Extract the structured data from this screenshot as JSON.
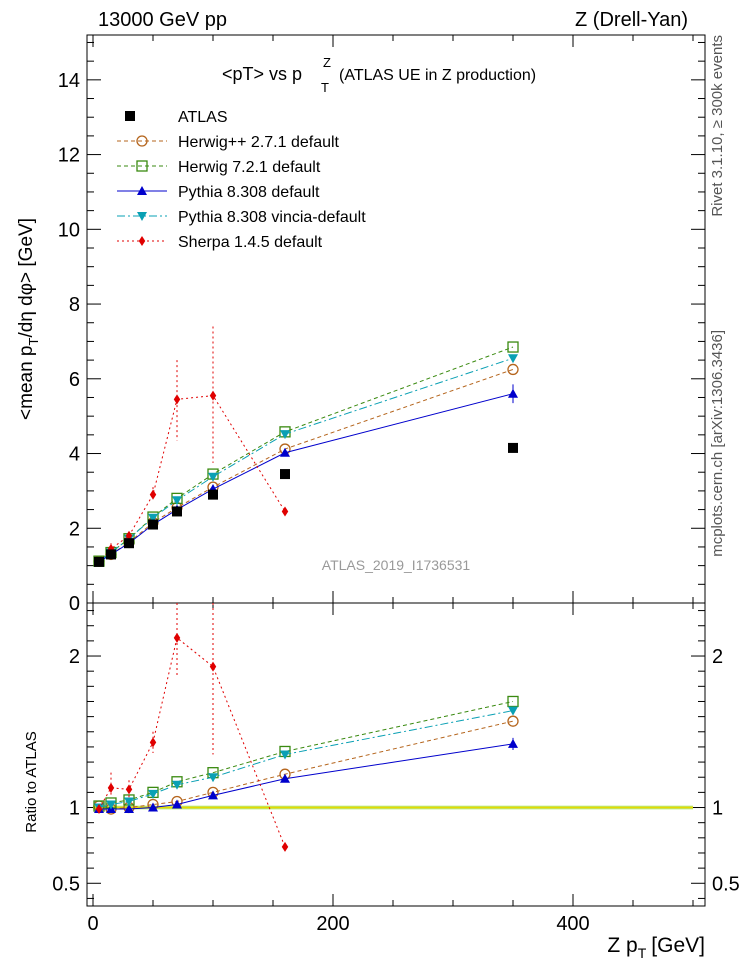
{
  "header": {
    "left": "13000 GeV pp",
    "right": "Z (Drell-Yan)"
  },
  "side_labels": {
    "rivet": "Rivet 3.1.10, ≥ 300k events",
    "mcplots": "mcplots.cern.ch [arXiv:1306.3436]"
  },
  "chart_data": {
    "type": "line",
    "title_main": "<pT> vs p",
    "title_sup": "Z",
    "title_sub": "T",
    "title_rest": "(ATLAS UE in Z production)",
    "watermark": "ATLAS_2019_I1736531",
    "xlabel_main": "Z p",
    "xlabel_sub": "T",
    "xlabel_unit": "[GeV]",
    "ylabel_top_a": "<mean p",
    "ylabel_top_sub": "T",
    "ylabel_top_b": "/dη dφ> [GeV]",
    "ylabel_bottom": "Ratio to ATLAS",
    "xlim": [
      -5,
      510
    ],
    "ylim_top": [
      0,
      15.2
    ],
    "ylim_bottom": [
      0.35,
      2.35
    ],
    "x_ticks": [
      0,
      200,
      400
    ],
    "y_ticks_top": [
      0,
      2,
      4,
      6,
      8,
      10,
      12,
      14
    ],
    "y_ticks_bottom": [
      0.5,
      1,
      2
    ],
    "x": [
      5,
      15,
      30,
      50,
      70,
      100,
      160,
      350
    ],
    "reference_name": "ATLAS",
    "reference_x": [
      5,
      15,
      30,
      50,
      70,
      100,
      160,
      350
    ],
    "reference_y": [
      1.1,
      1.3,
      1.6,
      2.1,
      2.45,
      2.9,
      3.45,
      4.15
    ],
    "series": [
      {
        "name": "Herwig++ 2.7.1 default",
        "color": "#b5651d",
        "dash": "4,3",
        "marker": "circle-open",
        "x": [
          5,
          15,
          30,
          50,
          70,
          100,
          160,
          350
        ],
        "values": [
          1.12,
          1.3,
          1.62,
          2.15,
          2.55,
          3.1,
          4.12,
          6.25
        ],
        "ratio": [
          1.01,
          0.99,
          1.0,
          1.02,
          1.04,
          1.1,
          1.22,
          1.57
        ]
      },
      {
        "name": "Herwig 7.2.1 default",
        "color": "#3a8a10",
        "dash": "4,3",
        "marker": "square-open",
        "x": [
          5,
          15,
          30,
          50,
          70,
          100,
          160,
          350
        ],
        "values": [
          1.12,
          1.35,
          1.72,
          2.3,
          2.8,
          3.45,
          4.58,
          6.85
        ],
        "ratio": [
          1.01,
          1.03,
          1.05,
          1.1,
          1.17,
          1.23,
          1.37,
          1.7
        ]
      },
      {
        "name": "Pythia 8.308 default",
        "color": "#0000cc",
        "dash": "",
        "marker": "triangle-up",
        "x": [
          5,
          15,
          30,
          50,
          70,
          100,
          160,
          350
        ],
        "values": [
          1.1,
          1.3,
          1.6,
          2.1,
          2.5,
          3.05,
          4.02,
          5.6
        ],
        "ratio": [
          0.99,
          0.99,
          0.99,
          1.0,
          1.02,
          1.08,
          1.19,
          1.42
        ]
      },
      {
        "name": "Pythia 8.308 vincia-default",
        "color": "#0aa0b4",
        "dash": "8,3,2,3",
        "marker": "triangle-down",
        "x": [
          5,
          15,
          30,
          50,
          70,
          100,
          160,
          350
        ],
        "values": [
          1.12,
          1.35,
          1.72,
          2.28,
          2.75,
          3.38,
          4.52,
          6.55
        ],
        "ratio": [
          1.0,
          1.02,
          1.04,
          1.09,
          1.15,
          1.2,
          1.35,
          1.64
        ]
      },
      {
        "name": "Sherpa 1.4.5 default",
        "color": "#e00000",
        "dash": "2,3",
        "marker": "diamond",
        "x": [
          5,
          15,
          30,
          50,
          70,
          100,
          160
        ],
        "values": [
          1.1,
          1.45,
          1.8,
          2.9,
          5.45,
          5.55,
          2.45
        ],
        "ratio": [
          0.99,
          1.13,
          1.12,
          1.43,
          2.12,
          1.93,
          0.74
        ]
      }
    ]
  }
}
